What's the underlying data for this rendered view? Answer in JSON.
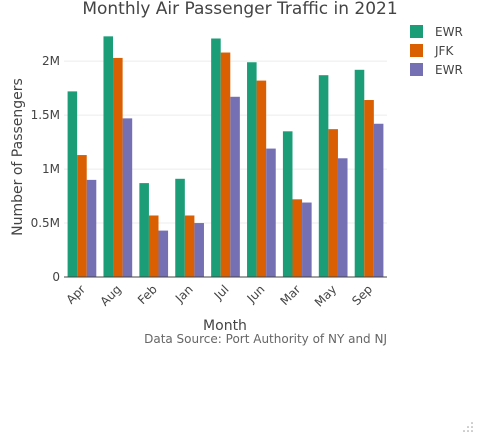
{
  "chart_data": {
    "type": "bar",
    "title": "Monthly Air Passenger Traffic in 2021",
    "xlabel": "Month",
    "ylabel": "Number of Passengers",
    "annotation": "Data Source: Port Authority of NY and NJ",
    "categories": [
      "Apr",
      "Aug",
      "Feb",
      "Jan",
      "Jul",
      "Jun",
      "Mar",
      "May",
      "Sep"
    ],
    "ylim": [
      0,
      2400000
    ],
    "yticks": [
      0,
      500000,
      1000000,
      1500000,
      2000000
    ],
    "ytick_labels": [
      "0",
      "0.5M",
      "1M",
      "1.5M",
      "2M"
    ],
    "grid": true,
    "legend_position": "top-right",
    "series": [
      {
        "name": "EWR",
        "color": "#1b9e77",
        "values": [
          1720000,
          2230000,
          870000,
          910000,
          2210000,
          1990000,
          1350000,
          1870000,
          1920000
        ]
      },
      {
        "name": "JFK",
        "color": "#d95f02",
        "values": [
          1130000,
          2030000,
          570000,
          570000,
          2080000,
          1820000,
          720000,
          1370000,
          1640000
        ]
      },
      {
        "name": "EWR",
        "color": "#7570b3",
        "values": [
          900000,
          1470000,
          430000,
          500000,
          1670000,
          1190000,
          690000,
          1100000,
          1420000
        ]
      }
    ]
  }
}
